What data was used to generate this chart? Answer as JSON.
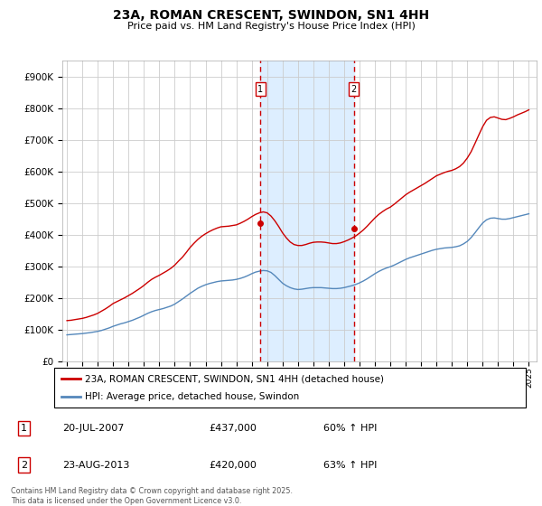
{
  "title": "23A, ROMAN CRESCENT, SWINDON, SN1 4HH",
  "subtitle": "Price paid vs. HM Land Registry's House Price Index (HPI)",
  "ylim": [
    0,
    950000
  ],
  "xlim_start": 1994.7,
  "xlim_end": 2025.5,
  "xticks": [
    1995,
    1996,
    1997,
    1998,
    1999,
    2000,
    2001,
    2002,
    2003,
    2004,
    2005,
    2006,
    2007,
    2008,
    2009,
    2010,
    2011,
    2012,
    2013,
    2014,
    2015,
    2016,
    2017,
    2018,
    2019,
    2020,
    2021,
    2022,
    2023,
    2024,
    2025
  ],
  "sale1_date": 2007.55,
  "sale1_price": 437000,
  "sale1_label": "1",
  "sale2_date": 2013.64,
  "sale2_price": 420000,
  "sale2_label": "2",
  "red_line_color": "#cc0000",
  "blue_line_color": "#5588bb",
  "dashed_color": "#cc0000",
  "shaded_color": "#ddeeff",
  "background_color": "#ffffff",
  "grid_color": "#cccccc",
  "legend_line1": "23A, ROMAN CRESCENT, SWINDON, SN1 4HH (detached house)",
  "legend_line2": "HPI: Average price, detached house, Swindon",
  "sale_info": [
    {
      "num": "1",
      "date": "20-JUL-2007",
      "price": "£437,000",
      "pct": "60% ↑ HPI"
    },
    {
      "num": "2",
      "date": "23-AUG-2013",
      "price": "£420,000",
      "pct": "63% ↑ HPI"
    }
  ],
  "footer": "Contains HM Land Registry data © Crown copyright and database right 2025.\nThis data is licensed under the Open Government Licence v3.0.",
  "hpi_years": [
    1995,
    1995.25,
    1995.5,
    1995.75,
    1996,
    1996.25,
    1996.5,
    1996.75,
    1997,
    1997.25,
    1997.5,
    1997.75,
    1998,
    1998.25,
    1998.5,
    1998.75,
    1999,
    1999.25,
    1999.5,
    1999.75,
    2000,
    2000.25,
    2000.5,
    2000.75,
    2001,
    2001.25,
    2001.5,
    2001.75,
    2002,
    2002.25,
    2002.5,
    2002.75,
    2003,
    2003.25,
    2003.5,
    2003.75,
    2004,
    2004.25,
    2004.5,
    2004.75,
    2005,
    2005.25,
    2005.5,
    2005.75,
    2006,
    2006.25,
    2006.5,
    2006.75,
    2007,
    2007.25,
    2007.5,
    2007.75,
    2008,
    2008.25,
    2008.5,
    2008.75,
    2009,
    2009.25,
    2009.5,
    2009.75,
    2010,
    2010.25,
    2010.5,
    2010.75,
    2011,
    2011.25,
    2011.5,
    2011.75,
    2012,
    2012.25,
    2012.5,
    2012.75,
    2013,
    2013.25,
    2013.5,
    2013.75,
    2014,
    2014.25,
    2014.5,
    2014.75,
    2015,
    2015.25,
    2015.5,
    2015.75,
    2016,
    2016.25,
    2016.5,
    2016.75,
    2017,
    2017.25,
    2017.5,
    2017.75,
    2018,
    2018.25,
    2018.5,
    2018.75,
    2019,
    2019.25,
    2019.5,
    2019.75,
    2020,
    2020.25,
    2020.5,
    2020.75,
    2021,
    2021.25,
    2021.5,
    2021.75,
    2022,
    2022.25,
    2022.5,
    2022.75,
    2023,
    2023.25,
    2023.5,
    2023.75,
    2024,
    2024.25,
    2024.5,
    2024.75,
    2025
  ],
  "hpi_values": [
    85000,
    86000,
    87000,
    88000,
    89000,
    90500,
    92000,
    94000,
    96000,
    99000,
    103000,
    107000,
    112000,
    116000,
    120000,
    123000,
    127000,
    131000,
    136000,
    141000,
    147000,
    153000,
    158000,
    162000,
    165000,
    168000,
    172000,
    176000,
    182000,
    190000,
    198000,
    207000,
    216000,
    224000,
    232000,
    238000,
    243000,
    247000,
    250000,
    253000,
    255000,
    256000,
    257000,
    258000,
    260000,
    263000,
    267000,
    272000,
    278000,
    283000,
    286000,
    288000,
    287000,
    282000,
    272000,
    260000,
    248000,
    240000,
    234000,
    230000,
    228000,
    229000,
    231000,
    233000,
    234000,
    234000,
    234000,
    233000,
    232000,
    231000,
    231000,
    232000,
    234000,
    237000,
    240000,
    244000,
    249000,
    255000,
    262000,
    270000,
    278000,
    285000,
    291000,
    296000,
    300000,
    305000,
    311000,
    317000,
    323000,
    328000,
    332000,
    336000,
    340000,
    344000,
    348000,
    352000,
    355000,
    357000,
    359000,
    360000,
    361000,
    363000,
    366000,
    372000,
    380000,
    392000,
    407000,
    423000,
    438000,
    448000,
    453000,
    454000,
    452000,
    450000,
    450000,
    452000,
    455000,
    458000,
    461000,
    464000,
    467000
  ],
  "red_years": [
    1995,
    1995.25,
    1995.5,
    1995.75,
    1996,
    1996.25,
    1996.5,
    1996.75,
    1997,
    1997.25,
    1997.5,
    1997.75,
    1998,
    1998.25,
    1998.5,
    1998.75,
    1999,
    1999.25,
    1999.5,
    1999.75,
    2000,
    2000.25,
    2000.5,
    2000.75,
    2001,
    2001.25,
    2001.5,
    2001.75,
    2002,
    2002.25,
    2002.5,
    2002.75,
    2003,
    2003.25,
    2003.5,
    2003.75,
    2004,
    2004.25,
    2004.5,
    2004.75,
    2005,
    2005.25,
    2005.5,
    2005.75,
    2006,
    2006.25,
    2006.5,
    2006.75,
    2007,
    2007.25,
    2007.5,
    2007.75,
    2008,
    2008.25,
    2008.5,
    2008.75,
    2009,
    2009.25,
    2009.5,
    2009.75,
    2010,
    2010.25,
    2010.5,
    2010.75,
    2011,
    2011.25,
    2011.5,
    2011.75,
    2012,
    2012.25,
    2012.5,
    2012.75,
    2013,
    2013.25,
    2013.5,
    2013.75,
    2014,
    2014.25,
    2014.5,
    2014.75,
    2015,
    2015.25,
    2015.5,
    2015.75,
    2016,
    2016.25,
    2016.5,
    2016.75,
    2017,
    2017.25,
    2017.5,
    2017.75,
    2018,
    2018.25,
    2018.5,
    2018.75,
    2019,
    2019.25,
    2019.5,
    2019.75,
    2020,
    2020.25,
    2020.5,
    2020.75,
    2021,
    2021.25,
    2021.5,
    2021.75,
    2022,
    2022.25,
    2022.5,
    2022.75,
    2023,
    2023.25,
    2023.5,
    2023.75,
    2024,
    2024.25,
    2024.5,
    2024.75,
    2025
  ],
  "red_values": [
    130000,
    131000,
    133000,
    135000,
    137000,
    140000,
    144000,
    148000,
    153000,
    160000,
    167000,
    175000,
    184000,
    190000,
    196000,
    202000,
    209000,
    216000,
    224000,
    232000,
    241000,
    251000,
    260000,
    267000,
    273000,
    280000,
    287000,
    295000,
    305000,
    318000,
    330000,
    345000,
    361000,
    374000,
    386000,
    396000,
    404000,
    411000,
    417000,
    422000,
    426000,
    427000,
    428000,
    430000,
    432000,
    437000,
    443000,
    450000,
    458000,
    465000,
    470000,
    473000,
    470000,
    460000,
    445000,
    427000,
    407000,
    391000,
    378000,
    370000,
    367000,
    367000,
    370000,
    374000,
    377000,
    378000,
    378000,
    377000,
    375000,
    373000,
    373000,
    375000,
    379000,
    384000,
    390000,
    397000,
    406000,
    416000,
    428000,
    441000,
    454000,
    465000,
    474000,
    482000,
    488000,
    497000,
    507000,
    517000,
    527000,
    535000,
    542000,
    549000,
    556000,
    563000,
    571000,
    579000,
    587000,
    592000,
    597000,
    601000,
    604000,
    609000,
    616000,
    627000,
    643000,
    663000,
    689000,
    716000,
    742000,
    762000,
    771000,
    773000,
    769000,
    765000,
    764000,
    768000,
    773000,
    779000,
    784000,
    789000,
    795000
  ]
}
